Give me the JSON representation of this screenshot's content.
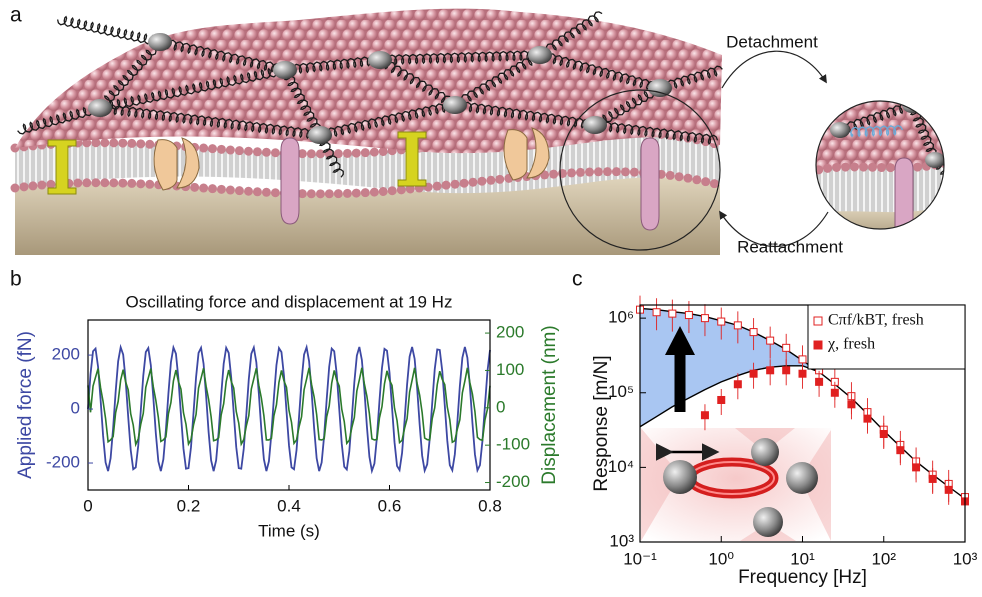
{
  "panel_labels": [
    "a",
    "b",
    "c"
  ],
  "illustration": {
    "detachment": "Detachment",
    "reattachment": "Reattachment"
  },
  "chart_data": [
    {
      "type": "line",
      "title": "Oscillating force and displacement at 19 Hz",
      "xlabel": "Time (s)",
      "ylabel": "Applied force (fN)",
      "y2label": "Displacement (nm)",
      "x": [
        0,
        0.005,
        0.01,
        0.015,
        0.02,
        0.025,
        0.03,
        0.035,
        0.04,
        0.045,
        0.05,
        0.055,
        0.06,
        0.065,
        0.07,
        0.075,
        0.08,
        0.085,
        0.09,
        0.095,
        0.1,
        0.105,
        0.11,
        0.115,
        0.12,
        0.125,
        0.13,
        0.135,
        0.14,
        0.145,
        0.15,
        0.155,
        0.16,
        0.165,
        0.17,
        0.175,
        0.18,
        0.185,
        0.19,
        0.195,
        0.2,
        0.205,
        0.21,
        0.215,
        0.22,
        0.225,
        0.23,
        0.235,
        0.24,
        0.245,
        0.25,
        0.255,
        0.26,
        0.265,
        0.27,
        0.275,
        0.28,
        0.285,
        0.29,
        0.295,
        0.3,
        0.305,
        0.31,
        0.315,
        0.32,
        0.325,
        0.33,
        0.335,
        0.34,
        0.345,
        0.35,
        0.355,
        0.36,
        0.365,
        0.37,
        0.375,
        0.38,
        0.385,
        0.39,
        0.395,
        0.4,
        0.405,
        0.41,
        0.415,
        0.42,
        0.425,
        0.43,
        0.435,
        0.44,
        0.445,
        0.45,
        0.455,
        0.46,
        0.465,
        0.47,
        0.475,
        0.48,
        0.485,
        0.49,
        0.495,
        0.5,
        0.505,
        0.51,
        0.515,
        0.52,
        0.525,
        0.53,
        0.535,
        0.54,
        0.545,
        0.55,
        0.555,
        0.56,
        0.565,
        0.57,
        0.575,
        0.58,
        0.585,
        0.59,
        0.595,
        0.6,
        0.605,
        0.61,
        0.615,
        0.62,
        0.625,
        0.63,
        0.635,
        0.64,
        0.645,
        0.65,
        0.655,
        0.66,
        0.665,
        0.67,
        0.675,
        0.68,
        0.685,
        0.69,
        0.695,
        0.7,
        0.705,
        0.71,
        0.715,
        0.72,
        0.725,
        0.73,
        0.735,
        0.74,
        0.745,
        0.75,
        0.755,
        0.76,
        0.765,
        0.77,
        0.775,
        0.78,
        0.785,
        0.79,
        0.795,
        0.8
      ],
      "series": [
        {
          "color": "#3d48a3",
          "values": [
            0,
            129,
            214,
            224,
            157,
            36,
            -98,
            -198,
            -230,
            -182,
            -71,
            64,
            177,
            229,
            202,
            104,
            -29,
            -152,
            -223,
            -216,
            -135,
            -7,
            123,
            211,
            226,
            163,
            43,
            -91,
            -194,
            -230,
            -186,
            -78,
            57,
            173,
            228,
            205,
            111,
            -22,
            -147,
            -221,
            -219,
            -141,
            -14,
            117,
            208,
            227,
            168,
            50,
            -85,
            -190,
            -230,
            -190,
            -85,
            50,
            168,
            227,
            208,
            117,
            -14,
            -141,
            -219,
            -221,
            -147,
            -22,
            111,
            205,
            228,
            173,
            57,
            -78,
            -186,
            -230,
            -194,
            -91,
            43,
            163,
            226,
            211,
            123,
            -7,
            -135,
            -216,
            -223,
            -152,
            -29,
            104,
            202,
            229,
            177,
            64,
            -71,
            -182,
            -230,
            -198,
            -98,
            36,
            157,
            224,
            214,
            129,
            0,
            -129,
            -214,
            -224,
            -157,
            -36,
            98,
            198,
            230,
            182,
            71,
            -64,
            -177,
            -229,
            -202,
            -104,
            29,
            152,
            223,
            216,
            135,
            7,
            -123,
            -211,
            -226,
            -163,
            -43,
            91,
            194,
            230,
            186,
            78,
            -57,
            -173,
            -228,
            -205,
            -111,
            22,
            147,
            221,
            219,
            141,
            14,
            -117,
            -208,
            -227,
            -168,
            -50,
            85,
            190,
            230,
            190,
            85,
            -50,
            -168,
            -227,
            -208,
            -117,
            14,
            141,
            219
          ]
        },
        {
          "color": "#2b7a2b",
          "axis": "y2",
          "values": [
            60,
            -12,
            58,
            82,
            105,
            54,
            17,
            -29,
            -91,
            -86,
            -77,
            -13,
            17,
            74,
            102,
            69,
            48,
            -16,
            -46,
            -98,
            -83,
            -44,
            -15,
            55,
            80,
            105,
            56,
            20,
            -26,
            -90,
            -86,
            -78,
            -16,
            14,
            72,
            101,
            70,
            50,
            -13,
            -44,
            -97,
            -85,
            -46,
            -18,
            53,
            79,
            106,
            58,
            23,
            -24,
            -88,
            -86,
            -80,
            -19,
            11,
            70,
            101,
            71,
            53,
            -10,
            -41,
            -97,
            -85,
            -49,
            -21,
            50,
            78,
            106,
            60,
            26,
            -21,
            -86,
            -86,
            -82,
            -21,
            8,
            68,
            100,
            72,
            55,
            -7,
            -39,
            -95,
            -86,
            -51,
            -24,
            48,
            77,
            107,
            62,
            29,
            -18,
            -85,
            -86,
            -83,
            -24,
            5,
            66,
            100,
            74,
            58,
            -4,
            -37,
            -95,
            -87,
            -53,
            -26,
            45,
            75,
            107,
            64,
            31,
            -16,
            -83,
            -86,
            -85,
            -27,
            3,
            64,
            99,
            74,
            60,
            -1,
            -34,
            -93,
            -87,
            -55,
            -29,
            42,
            74,
            107,
            65,
            34,
            -13,
            -81,
            -85,
            -86,
            -29,
            0,
            62,
            98,
            76,
            62,
            2,
            -32,
            -92,
            -88,
            -57,
            -32,
            40,
            72,
            107,
            67,
            37,
            -10,
            -79,
            -85,
            -87,
            -32,
            -3,
            59
          ]
        }
      ],
      "xlim": [
        0,
        0.8
      ],
      "xticks": [
        0,
        0.2,
        0.4,
        0.6,
        0.8
      ],
      "ylim": [
        -300,
        330
      ],
      "yticks": [
        -200,
        0,
        200
      ],
      "y2lim": [
        -220,
        235
      ],
      "y2ticks": [
        -200,
        -100,
        0,
        100,
        200
      ]
    },
    {
      "type": "scatter",
      "xlabel": "Frequency [Hz]",
      "ylabel": "Response [m/N]",
      "log_x": true,
      "log_y": true,
      "legend": "upper right",
      "x": [
        0.1,
        0.16,
        0.25,
        0.4,
        0.63,
        1,
        1.6,
        2.5,
        4,
        6.3,
        10,
        16,
        25,
        40,
        63,
        100,
        160,
        250,
        400,
        630,
        1000
      ],
      "series": [
        {
          "name": "Cπf/kBT, fresh",
          "color": "#e02020",
          "marker": "open-square",
          "values": [
            1300000,
            1200000,
            1150000,
            1100000,
            1000000,
            900000,
            800000,
            650000,
            500000,
            400000,
            280000,
            200000,
            140000,
            90000,
            55000,
            32000,
            20000,
            12000,
            8000,
            6000,
            4000
          ]
        },
        {
          "name": "χ, fresh",
          "color": "#e02020",
          "marker": "filled-square",
          "values": [
            null,
            null,
            null,
            null,
            50000,
            80000,
            130000,
            180000,
            200000,
            200000,
            180000,
            140000,
            100000,
            70000,
            45000,
            28000,
            17000,
            10000,
            7000,
            5000,
            3500
          ]
        }
      ],
      "fit_curves": [
        {
          "color": "#000000",
          "x": [
            0.1,
            0.16,
            0.25,
            0.4,
            0.63,
            1,
            1.6,
            2.5,
            4,
            6.3,
            10,
            16,
            25,
            40,
            63,
            100,
            160,
            250,
            400,
            630,
            1000
          ],
          "values": [
            1350000,
            1300000,
            1220000,
            1150000,
            1050000,
            920000,
            800000,
            650000,
            500000,
            380000,
            270000,
            190000,
            130000,
            85000,
            52000,
            31000,
            19000,
            12000,
            8000,
            5500,
            3800
          ]
        },
        {
          "color": "#000000",
          "x": [
            0.1,
            0.16,
            0.25,
            0.4,
            0.63,
            1,
            1.6,
            2.5,
            4,
            6.3,
            10,
            16
          ],
          "values": [
            35000,
            48000,
            65000,
            85000,
            110000,
            140000,
            170000,
            200000,
            220000,
            230000,
            230000,
            190000
          ]
        }
      ],
      "shade_color": "#a9c6f2",
      "xlim": [
        0.1,
        1000
      ],
      "xticks": [
        {
          "value": 0.1,
          "label": "10⁻¹"
        },
        {
          "value": 1,
          "label": "10⁰"
        },
        {
          "value": 10,
          "label": "10¹"
        },
        {
          "value": 100,
          "label": "10²"
        },
        {
          "value": 1000,
          "label": "10³"
        }
      ],
      "ylim": [
        1000,
        1500000
      ],
      "yticks": [
        {
          "value": 1000,
          "label": "10³"
        },
        {
          "value": 10000,
          "label": "10⁴"
        },
        {
          "value": 100000,
          "label": "10⁵"
        },
        {
          "value": 1000000,
          "label": "10⁶"
        }
      ]
    }
  ]
}
